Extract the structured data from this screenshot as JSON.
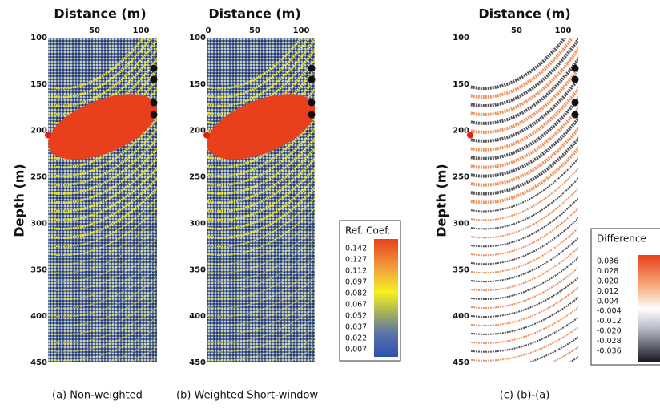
{
  "panels": [
    {
      "title": "Distance (m)",
      "y_label": "Depth (m)",
      "x_ticks": [
        "50",
        "100"
      ],
      "y_ticks": [
        "100",
        "150",
        "200",
        "250",
        "300",
        "350",
        "400",
        "450"
      ],
      "caption": "(a) Non-weighted"
    },
    {
      "title": "Distance (m)",
      "x_ticks": [
        "0",
        "50",
        "100"
      ],
      "y_ticks": [
        "100",
        "150",
        "200",
        "250",
        "300",
        "350",
        "400",
        "450"
      ],
      "caption": "(b) Weighted Short-window"
    },
    {
      "title": "Distance (m)",
      "y_label": "Depth (m)",
      "x_ticks": [
        "50",
        "100"
      ],
      "y_ticks": [
        "100",
        "150",
        "200",
        "250",
        "300",
        "350",
        "400",
        "450"
      ],
      "caption": "(c) (b)-(a)"
    }
  ],
  "legends": [
    {
      "title": "Ref. Coef.",
      "labels": [
        "0.142",
        "0.127",
        "0.112",
        "0.097",
        "0.082",
        "0.067",
        "0.052",
        "0.037",
        "0.022",
        "0.007"
      ]
    },
    {
      "title": "Difference",
      "labels": [
        "0.036",
        "0.028",
        "0.020",
        "0.012",
        "0.004",
        "-0.004",
        "-0.012",
        "-0.020",
        "-0.028",
        "-0.036"
      ]
    }
  ]
}
